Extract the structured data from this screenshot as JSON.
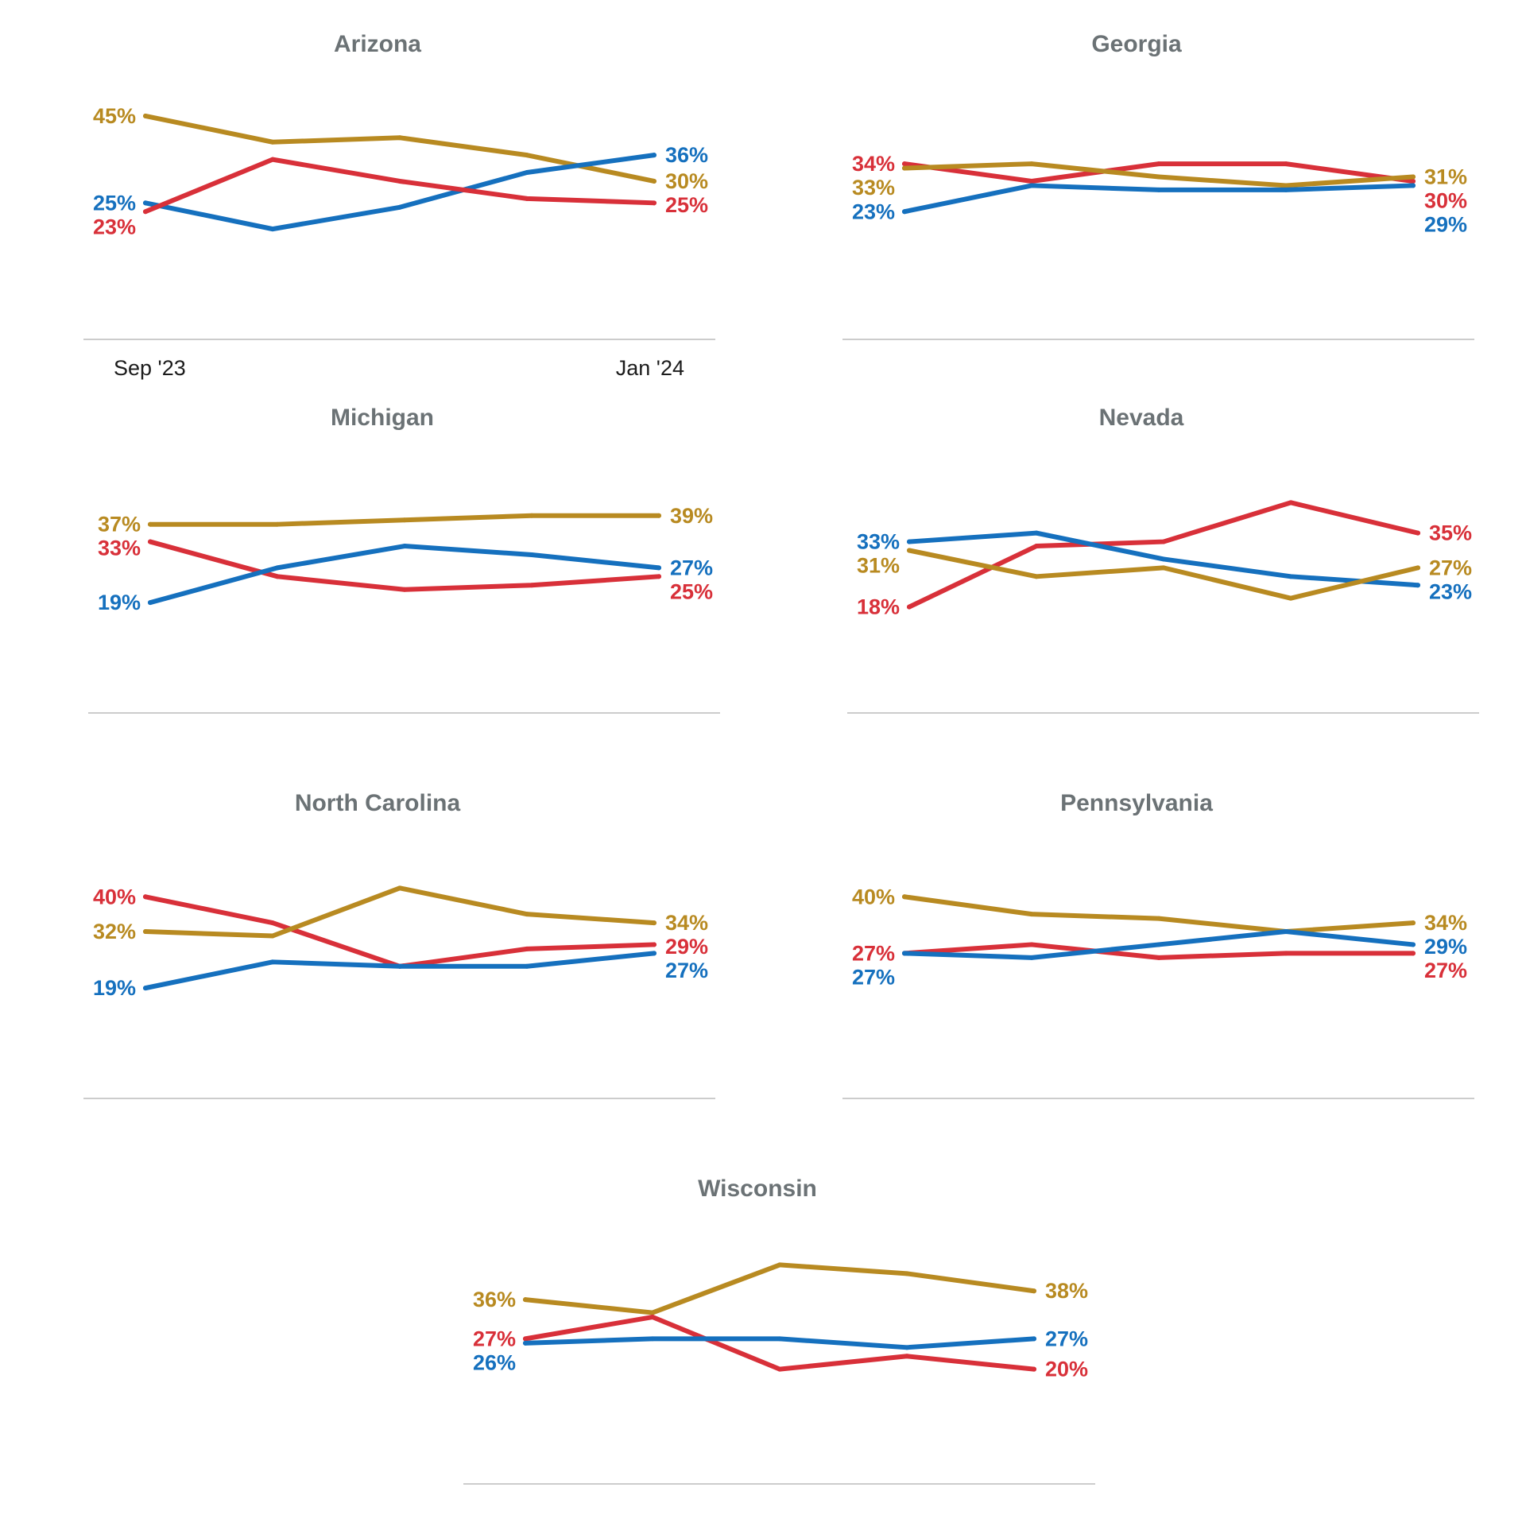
{
  "colors": {
    "blue": "#1570be",
    "red": "#d83039",
    "gold": "#b88a21",
    "baseline": "#cccccc"
  },
  "chart_data": [
    {
      "type": "line",
      "title": "Arizona",
      "x": [
        "Sep '23",
        "",
        "",
        "",
        "Jan '24"
      ],
      "show_x_ticks": true,
      "series": [
        {
          "color_key": "gold",
          "values": [
            45,
            39,
            40,
            36,
            30
          ],
          "start_label": "45%",
          "end_label": "30%"
        },
        {
          "color_key": "blue",
          "values": [
            25,
            19,
            24,
            32,
            36
          ],
          "start_label": "25%",
          "end_label": "36%"
        },
        {
          "color_key": "red",
          "values": [
            23,
            35,
            30,
            26,
            25
          ],
          "start_label": "23%",
          "end_label": "25%"
        }
      ]
    },
    {
      "type": "line",
      "title": "Georgia",
      "x": [
        "",
        "",
        "",
        "",
        ""
      ],
      "show_x_ticks": false,
      "series": [
        {
          "color_key": "red",
          "values": [
            34,
            30,
            34,
            34,
            30
          ],
          "start_label": "34%",
          "end_label": "30%"
        },
        {
          "color_key": "gold",
          "values": [
            33,
            34,
            31,
            29,
            31
          ],
          "start_label": "33%",
          "end_label": "31%"
        },
        {
          "color_key": "blue",
          "values": [
            23,
            29,
            28,
            28,
            29
          ],
          "start_label": "23%",
          "end_label": "29%"
        }
      ]
    },
    {
      "type": "line",
      "title": "Michigan",
      "x": [
        "",
        "",
        "",
        "",
        ""
      ],
      "show_x_ticks": false,
      "series": [
        {
          "color_key": "gold",
          "values": [
            37,
            37,
            38,
            39,
            39
          ],
          "start_label": "37%",
          "end_label": "39%"
        },
        {
          "color_key": "red",
          "values": [
            33,
            25,
            22,
            23,
            25
          ],
          "start_label": "33%",
          "end_label": "25%"
        },
        {
          "color_key": "blue",
          "values": [
            19,
            27,
            32,
            30,
            27
          ],
          "start_label": "19%",
          "end_label": "27%"
        }
      ]
    },
    {
      "type": "line",
      "title": "Nevada",
      "x": [
        "",
        "",
        "",
        "",
        ""
      ],
      "show_x_ticks": false,
      "series": [
        {
          "color_key": "red",
          "values": [
            18,
            32,
            33,
            42,
            35
          ],
          "start_label": "18%",
          "end_label": "35%"
        },
        {
          "color_key": "blue",
          "values": [
            33,
            35,
            29,
            25,
            23
          ],
          "start_label": "33%",
          "end_label": "23%"
        },
        {
          "color_key": "gold",
          "values": [
            31,
            25,
            27,
            20,
            27
          ],
          "start_label": "31%",
          "end_label": "27%"
        }
      ]
    },
    {
      "type": "line",
      "title": "North Carolina",
      "x": [
        "",
        "",
        "",
        "",
        ""
      ],
      "show_x_ticks": false,
      "series": [
        {
          "color_key": "red",
          "values": [
            40,
            34,
            24,
            28,
            29
          ],
          "start_label": "40%",
          "end_label": "29%"
        },
        {
          "color_key": "gold",
          "values": [
            32,
            31,
            42,
            36,
            34
          ],
          "start_label": "32%",
          "end_label": "34%"
        },
        {
          "color_key": "blue",
          "values": [
            19,
            25,
            24,
            24,
            27
          ],
          "start_label": "19%",
          "end_label": "27%"
        }
      ]
    },
    {
      "type": "line",
      "title": "Pennsylvania",
      "x": [
        "",
        "",
        "",
        "",
        ""
      ],
      "show_x_ticks": false,
      "series": [
        {
          "color_key": "gold",
          "values": [
            40,
            36,
            35,
            32,
            34
          ],
          "start_label": "40%",
          "end_label": "34%"
        },
        {
          "color_key": "red",
          "values": [
            27,
            29,
            26,
            27,
            27
          ],
          "start_label": "27%",
          "end_label": "27%"
        },
        {
          "color_key": "blue",
          "values": [
            27,
            26,
            29,
            32,
            29
          ],
          "start_label": "27%",
          "end_label": "29%"
        }
      ]
    },
    {
      "type": "line",
      "title": "Wisconsin",
      "x": [
        "",
        "",
        "",
        "",
        ""
      ],
      "show_x_ticks": false,
      "series": [
        {
          "color_key": "gold",
          "values": [
            36,
            33,
            44,
            42,
            38
          ],
          "start_label": "36%",
          "end_label": "38%"
        },
        {
          "color_key": "red",
          "values": [
            27,
            32,
            20,
            23,
            20
          ],
          "start_label": "27%",
          "end_label": "20%"
        },
        {
          "color_key": "blue",
          "values": [
            26,
            27,
            27,
            25,
            27
          ],
          "start_label": "26%",
          "end_label": "27%"
        }
      ]
    }
  ]
}
